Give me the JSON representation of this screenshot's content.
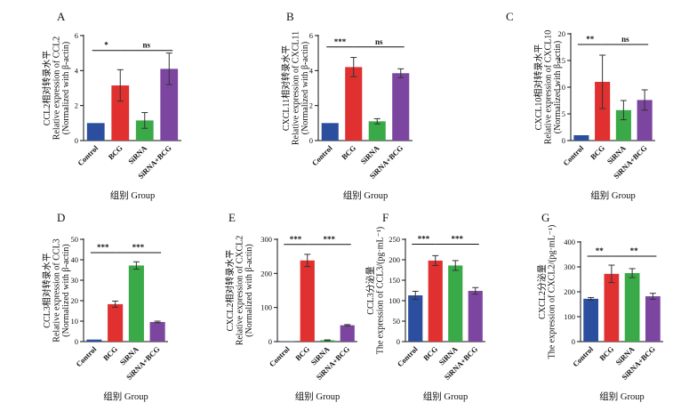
{
  "x_group_label": "组别 Group",
  "colors": {
    "Control": "#2b4f9e",
    "BCG": "#e03030",
    "SiRNA": "#3aaa48",
    "SiRNA+BCG": "#7c46a0",
    "axis": "#111111",
    "error": "#333333"
  },
  "chart_data": [
    {
      "panel": "A",
      "type": "bar",
      "categories": [
        "Control",
        "BCG",
        "SiRNA",
        "SiRNA+BCG"
      ],
      "values": [
        1.0,
        3.15,
        1.15,
        4.1
      ],
      "errors": [
        0.0,
        0.9,
        0.45,
        0.9
      ],
      "ylim": [
        0,
        6
      ],
      "yticks": [
        0,
        2,
        4,
        6
      ],
      "ylabel": [
        "CCL2相对转录水平",
        "Relative expression of CCL2",
        "(Normalized with β-actin)"
      ],
      "xlabel": "组别 Group",
      "significance": [
        {
          "from": 0,
          "to": 1,
          "text": "*",
          "level": 5.15
        },
        {
          "from": 1,
          "to": 3,
          "text": "ns",
          "level": 5.15
        }
      ]
    },
    {
      "panel": "B",
      "type": "bar",
      "categories": [
        "Control",
        "BCG",
        "SiRNA",
        "SiRNA+BCG"
      ],
      "values": [
        1.0,
        4.2,
        1.1,
        3.85
      ],
      "errors": [
        0.0,
        0.55,
        0.15,
        0.25
      ],
      "ylim": [
        0,
        6
      ],
      "yticks": [
        0,
        2,
        4,
        6
      ],
      "ylabel": [
        "CXCL11相对转录水平",
        "Relative expression of CXCL11",
        "(Normalized with β-actin)"
      ],
      "xlabel": "组别 Group",
      "significance": [
        {
          "from": 0,
          "to": 1,
          "text": "***",
          "level": 5.35
        },
        {
          "from": 1,
          "to": 3,
          "text": "ns",
          "level": 5.35
        }
      ]
    },
    {
      "panel": "C",
      "type": "bar",
      "categories": [
        "Control",
        "BCG",
        "SiRNA",
        "SiRNA+BCG"
      ],
      "values": [
        1.0,
        11.0,
        5.7,
        7.6
      ],
      "errors": [
        0.0,
        5.0,
        1.8,
        1.9
      ],
      "ylim": [
        0,
        20
      ],
      "yticks": [
        0,
        5,
        10,
        15,
        20
      ],
      "ylabel": [
        "CXCL10相对转录水平",
        "Relative expression of CXCL10",
        "(Normalized with β-actin)"
      ],
      "xlabel": "组别 Group",
      "significance": [
        {
          "from": 0,
          "to": 1,
          "text": "**",
          "level": 18.0
        },
        {
          "from": 1,
          "to": 3,
          "text": "ns",
          "level": 18.0
        }
      ]
    },
    {
      "panel": "D",
      "type": "bar",
      "categories": [
        "Control",
        "BCG",
        "SiRNA",
        "SiRNA+BCG"
      ],
      "values": [
        1.0,
        18.3,
        37.2,
        9.6
      ],
      "errors": [
        0.0,
        1.5,
        1.8,
        0.4
      ],
      "ylim": [
        0,
        50
      ],
      "yticks": [
        0,
        10,
        20,
        30,
        40,
        50
      ],
      "ylabel": [
        "CCL3相对转录水平",
        "Relative expression of CCL3",
        "(Normalized with β-actin)"
      ],
      "xlabel": "组别 Group",
      "significance": [
        {
          "from": 0,
          "to": 1,
          "text": "***",
          "level": 43.5
        },
        {
          "from": 1,
          "to": 3,
          "text": "***",
          "level": 43.5
        }
      ]
    },
    {
      "panel": "E",
      "type": "bar",
      "categories": [
        "Control",
        "BCG",
        "SiRNA",
        "SiRNA+BCG"
      ],
      "values": [
        1.0,
        238,
        4.0,
        48
      ],
      "errors": [
        0.0,
        18,
        1.0,
        2.0
      ],
      "ylim": [
        0,
        300
      ],
      "yticks": [
        0,
        100,
        200,
        300
      ],
      "ylabel": [
        "CXCL2相对转录水平",
        "Relative expression of CXCL2",
        "(Normalized with β-actin)"
      ],
      "xlabel": "组别 Group",
      "significance": [
        {
          "from": 0,
          "to": 1,
          "text": "***",
          "level": 285
        },
        {
          "from": 1,
          "to": 3,
          "text": "***",
          "level": 285
        }
      ]
    },
    {
      "panel": "F",
      "type": "bar",
      "categories": [
        "Control",
        "BCG",
        "SiRNA",
        "SiRNA+BCG"
      ],
      "values": [
        113,
        198,
        186,
        124
      ],
      "errors": [
        10,
        12,
        12,
        8
      ],
      "ylim": [
        0,
        250
      ],
      "yticks": [
        0,
        50,
        100,
        150,
        200,
        250
      ],
      "ylabel": [
        "CCL3分泌量",
        "The expression of CCL3/(pg·mL⁻¹)"
      ],
      "xlabel": "组别 Group",
      "significance": [
        {
          "from": 0,
          "to": 1,
          "text": "***",
          "level": 238
        },
        {
          "from": 1,
          "to": 3,
          "text": "***",
          "level": 238
        }
      ]
    },
    {
      "panel": "G",
      "type": "bar",
      "categories": [
        "Control",
        "BCG",
        "SiRNA",
        "SiRNA+BCG"
      ],
      "values": [
        172,
        272,
        275,
        182
      ],
      "errors": [
        5,
        35,
        18,
        12
      ],
      "ylim": [
        0,
        400
      ],
      "yticks": [
        0,
        100,
        200,
        300,
        400
      ],
      "ylabel": [
        "CXCL2分泌量",
        "The expression of CXCL2/(pg·mL⁻¹)"
      ],
      "xlabel": "组别 Group",
      "significance": [
        {
          "from": 0,
          "to": 1,
          "text": "**",
          "level": 343
        },
        {
          "from": 1,
          "to": 3,
          "text": "**",
          "level": 343
        }
      ]
    }
  ]
}
